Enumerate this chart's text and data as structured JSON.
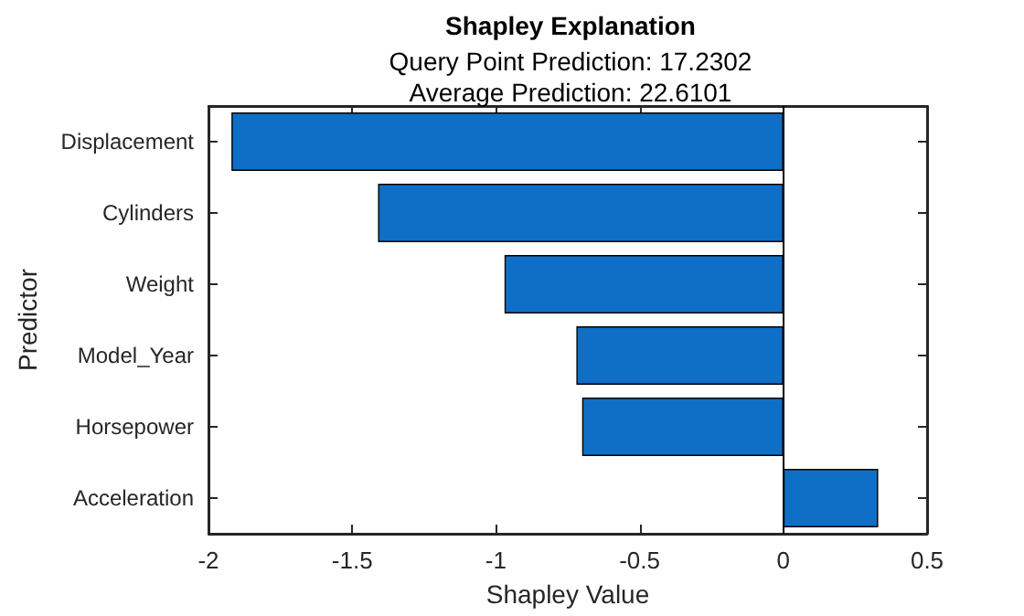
{
  "chart_data": {
    "type": "bar",
    "orientation": "horizontal",
    "title": "Shapley Explanation",
    "subtitle": "Query Point Prediction: 17.2302\nAverage Prediction: 22.6101",
    "xlabel": "Shapley Value",
    "ylabel": "Predictor",
    "categories": [
      "Displacement",
      "Cylinders",
      "Weight",
      "Model_Year",
      "Horsepower",
      "Acceleration"
    ],
    "values": [
      -1.92,
      -1.41,
      -0.97,
      -0.72,
      -0.7,
      0.33
    ],
    "color": "#0f6fc6",
    "xlim": [
      -2,
      0.5
    ],
    "xticks": [
      -2,
      -1.5,
      -1,
      -0.5,
      0,
      0.5
    ],
    "ref_lines": [
      {
        "axis": "x",
        "value": 0
      }
    ],
    "grid": false
  }
}
